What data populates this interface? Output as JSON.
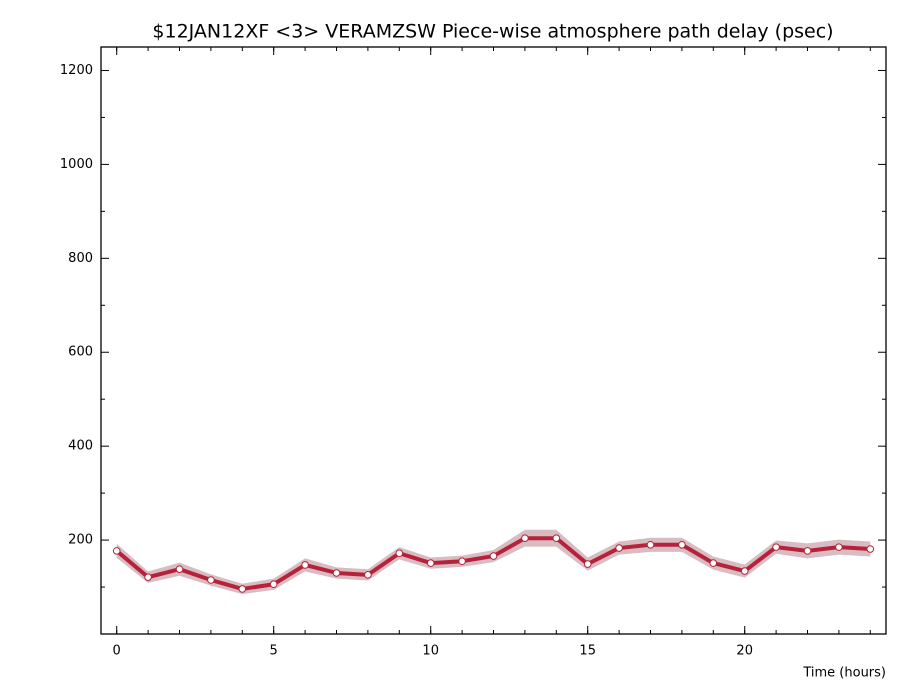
{
  "chart_data": {
    "type": "line",
    "title": "$12JAN12XF <3>  VERAMZSW  Piece-wise atmosphere path delay (psec)",
    "x_label": "Time (hours)",
    "x": [
      0,
      1,
      2,
      3,
      4,
      5,
      6,
      7,
      8,
      9,
      10,
      11,
      12,
      13,
      14,
      15,
      16,
      17,
      18,
      19,
      20,
      21,
      22,
      23,
      24
    ],
    "series": [
      {
        "color": "#b5223a",
        "band_color": "#d9bcc1",
        "values": [
          177,
          121,
          138,
          115,
          96,
          106,
          147,
          130,
          126,
          172,
          151,
          155,
          166,
          204,
          204,
          149,
          183,
          190,
          190,
          151,
          134,
          185,
          177,
          185,
          181
        ],
        "errors": [
          15,
          12,
          14,
          12,
          11,
          12,
          14,
          12,
          12,
          13,
          12,
          12,
          13,
          18,
          18,
          14,
          14,
          15,
          15,
          14,
          14,
          14,
          16,
          16,
          16
        ]
      }
    ],
    "xlim": [
      -0.5,
      24.5
    ],
    "xticks": [
      0,
      5,
      10,
      15,
      20
    ],
    "ylim": [
      0,
      1250
    ],
    "yticks": [
      200,
      400,
      600,
      800,
      1000,
      1200
    ]
  }
}
